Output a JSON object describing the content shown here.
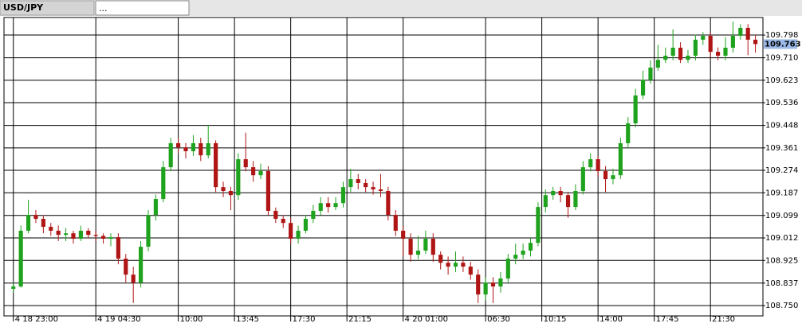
{
  "tabs": [
    "USD/JPY",
    "..."
  ],
  "chart_data": {
    "type": "candlestick",
    "x": [
      0,
      2,
      4,
      6,
      8,
      10,
      12,
      14,
      16,
      18,
      20,
      22,
      24,
      26,
      28,
      30,
      32,
      34,
      36,
      38,
      40,
      42,
      44,
      46,
      48,
      50,
      52,
      54,
      56,
      58,
      60,
      62,
      64,
      66,
      68,
      70,
      72,
      74,
      76,
      78,
      80,
      82,
      84,
      86,
      88,
      90,
      92,
      94,
      96,
      98,
      100,
      102,
      104,
      106,
      108,
      110,
      112,
      114,
      116,
      118,
      120,
      122,
      124,
      126,
      128,
      130,
      132,
      134,
      136,
      138,
      140,
      142,
      144,
      146,
      148,
      150,
      152,
      154,
      156,
      158,
      160,
      162,
      164,
      166,
      168,
      170,
      172,
      174,
      176,
      178,
      180,
      182,
      184,
      186,
      188,
      190,
      192,
      194,
      196,
      198
    ],
    "open": [
      108.815,
      108.824,
      109.04,
      109.101,
      109.086,
      109.055,
      109.04,
      109.024,
      109.03,
      109.009,
      109.04,
      109.024,
      109.02,
      109.009,
      109.015,
      108.932,
      108.87,
      108.839,
      108.978,
      109.101,
      109.163,
      109.286,
      109.379,
      109.363,
      109.348,
      109.379,
      109.332,
      109.379,
      109.209,
      109.194,
      109.178,
      109.317,
      109.286,
      109.255,
      109.271,
      109.117,
      109.086,
      109.07,
      109.009,
      109.04,
      109.086,
      109.117,
      109.147,
      109.132,
      109.147,
      109.209,
      109.24,
      109.225,
      109.209,
      109.2,
      109.194,
      109.101,
      109.04,
      109.009,
      108.947,
      108.963,
      109.009,
      108.947,
      108.916,
      108.901,
      108.916,
      108.901,
      108.87,
      108.793,
      108.839,
      108.824,
      108.855,
      108.932,
      108.947,
      108.963,
      108.993,
      109.132,
      109.178,
      109.194,
      109.178,
      109.132,
      109.194,
      109.286,
      109.317,
      109.271,
      109.24,
      109.255,
      109.379,
      109.456,
      109.564,
      109.625,
      109.672,
      109.702,
      109.718,
      109.749,
      109.702,
      109.718,
      109.78,
      109.795,
      109.733,
      109.718,
      109.749,
      109.795,
      109.826,
      109.78
    ],
    "high": [
      108.84,
      109.06,
      109.16,
      109.12,
      109.1,
      109.07,
      109.06,
      109.05,
      109.04,
      109.06,
      109.05,
      109.04,
      109.03,
      109.03,
      109.03,
      108.95,
      108.9,
      109.0,
      109.12,
      109.18,
      109.31,
      109.4,
      109.4,
      109.38,
      109.41,
      109.4,
      109.45,
      109.39,
      109.23,
      109.21,
      109.34,
      109.42,
      109.31,
      109.3,
      109.29,
      109.13,
      109.1,
      109.09,
      109.06,
      109.1,
      109.14,
      109.17,
      109.17,
      109.17,
      109.23,
      109.28,
      109.26,
      109.24,
      109.23,
      109.26,
      109.21,
      109.12,
      109.06,
      109.03,
      109.02,
      109.04,
      109.03,
      108.96,
      108.94,
      108.96,
      108.94,
      108.92,
      108.89,
      108.86,
      108.86,
      108.88,
      108.95,
      108.99,
      108.99,
      109.01,
      109.15,
      109.2,
      109.21,
      109.21,
      109.19,
      109.22,
      109.31,
      109.34,
      109.33,
      109.29,
      109.28,
      109.4,
      109.48,
      109.59,
      109.66,
      109.7,
      109.76,
      109.75,
      109.82,
      109.77,
      109.74,
      109.8,
      109.81,
      109.81,
      109.75,
      109.79,
      109.85,
      109.84,
      109.84,
      109.8
    ],
    "low": [
      108.8,
      108.82,
      109.03,
      109.07,
      109.03,
      109.02,
      109.0,
      109.0,
      108.99,
      109.0,
      109.01,
      109.0,
      108.99,
      108.98,
      108.91,
      108.84,
      108.76,
      108.82,
      108.96,
      109.08,
      109.15,
      109.27,
      109.34,
      109.32,
      109.33,
      109.31,
      109.32,
      109.19,
      109.17,
      109.12,
      109.16,
      109.27,
      109.23,
      109.24,
      109.1,
      109.07,
      109.05,
      108.99,
      108.99,
      109.03,
      109.07,
      109.1,
      109.11,
      109.12,
      109.13,
      109.19,
      109.2,
      109.19,
      109.18,
      109.17,
      109.08,
      109.02,
      108.94,
      108.92,
      108.93,
      108.95,
      108.92,
      108.89,
      108.87,
      108.88,
      108.88,
      108.85,
      108.76,
      108.77,
      108.76,
      108.8,
      108.84,
      108.91,
      108.93,
      108.94,
      108.98,
      109.11,
      109.16,
      109.15,
      109.09,
      109.12,
      109.18,
      109.27,
      109.25,
      109.19,
      109.22,
      109.24,
      109.36,
      109.44,
      109.55,
      109.61,
      109.66,
      109.69,
      109.7,
      109.69,
      109.69,
      109.7,
      109.76,
      109.71,
      109.7,
      109.7,
      109.73,
      109.78,
      109.72,
      109.73
    ],
    "close": [
      108.824,
      109.04,
      109.101,
      109.086,
      109.055,
      109.04,
      109.024,
      109.03,
      109.009,
      109.04,
      109.024,
      109.02,
      109.009,
      109.015,
      108.932,
      108.87,
      108.839,
      108.978,
      109.101,
      109.163,
      109.286,
      109.379,
      109.363,
      109.348,
      109.379,
      109.332,
      109.379,
      109.209,
      109.194,
      109.178,
      109.317,
      109.286,
      109.255,
      109.271,
      109.117,
      109.086,
      109.07,
      109.009,
      109.04,
      109.086,
      109.117,
      109.147,
      109.132,
      109.147,
      109.209,
      109.24,
      109.225,
      109.209,
      109.2,
      109.194,
      109.101,
      109.04,
      109.009,
      108.947,
      108.963,
      109.009,
      108.947,
      108.916,
      108.901,
      108.916,
      108.901,
      108.87,
      108.793,
      108.839,
      108.824,
      108.855,
      108.932,
      108.947,
      108.963,
      108.993,
      109.132,
      109.178,
      109.194,
      109.178,
      109.132,
      109.194,
      109.286,
      109.317,
      109.271,
      109.24,
      109.255,
      109.379,
      109.456,
      109.564,
      109.625,
      109.672,
      109.702,
      109.718,
      109.749,
      109.702,
      109.718,
      109.78,
      109.795,
      109.733,
      109.718,
      109.749,
      109.795,
      109.826,
      109.78,
      109.763
    ],
    "last_price": 109.763,
    "up_color": "#1fa31f",
    "down_color": "#b01515",
    "xlim": [
      -2.5,
      200
    ],
    "xticks": [
      {
        "value": 0,
        "label": "4 18 23:00"
      },
      {
        "value": 22,
        "label": "4 19 04:30"
      },
      {
        "value": 44,
        "label": "10:00"
      },
      {
        "value": 59,
        "label": "13:45"
      },
      {
        "value": 74,
        "label": "17:30"
      },
      {
        "value": 89,
        "label": "21:15"
      },
      {
        "value": 104,
        "label": "4 20 01:00"
      },
      {
        "value": 126,
        "label": "06:30"
      },
      {
        "value": 141,
        "label": "10:15"
      },
      {
        "value": 156,
        "label": "14:00"
      },
      {
        "value": 171,
        "label": "17:45"
      },
      {
        "value": 186,
        "label": "21:30"
      }
    ],
    "ylim": [
      108.71,
      109.866
    ],
    "yticks": [
      109.798,
      {
        "value": 109.71,
        "label": "109.710"
      },
      109.623,
      109.536,
      109.448,
      109.361,
      109.274,
      109.187,
      109.099,
      109.012,
      108.925,
      108.837,
      {
        "value": 108.75,
        "label": "108.750"
      }
    ],
    "grid": true
  }
}
